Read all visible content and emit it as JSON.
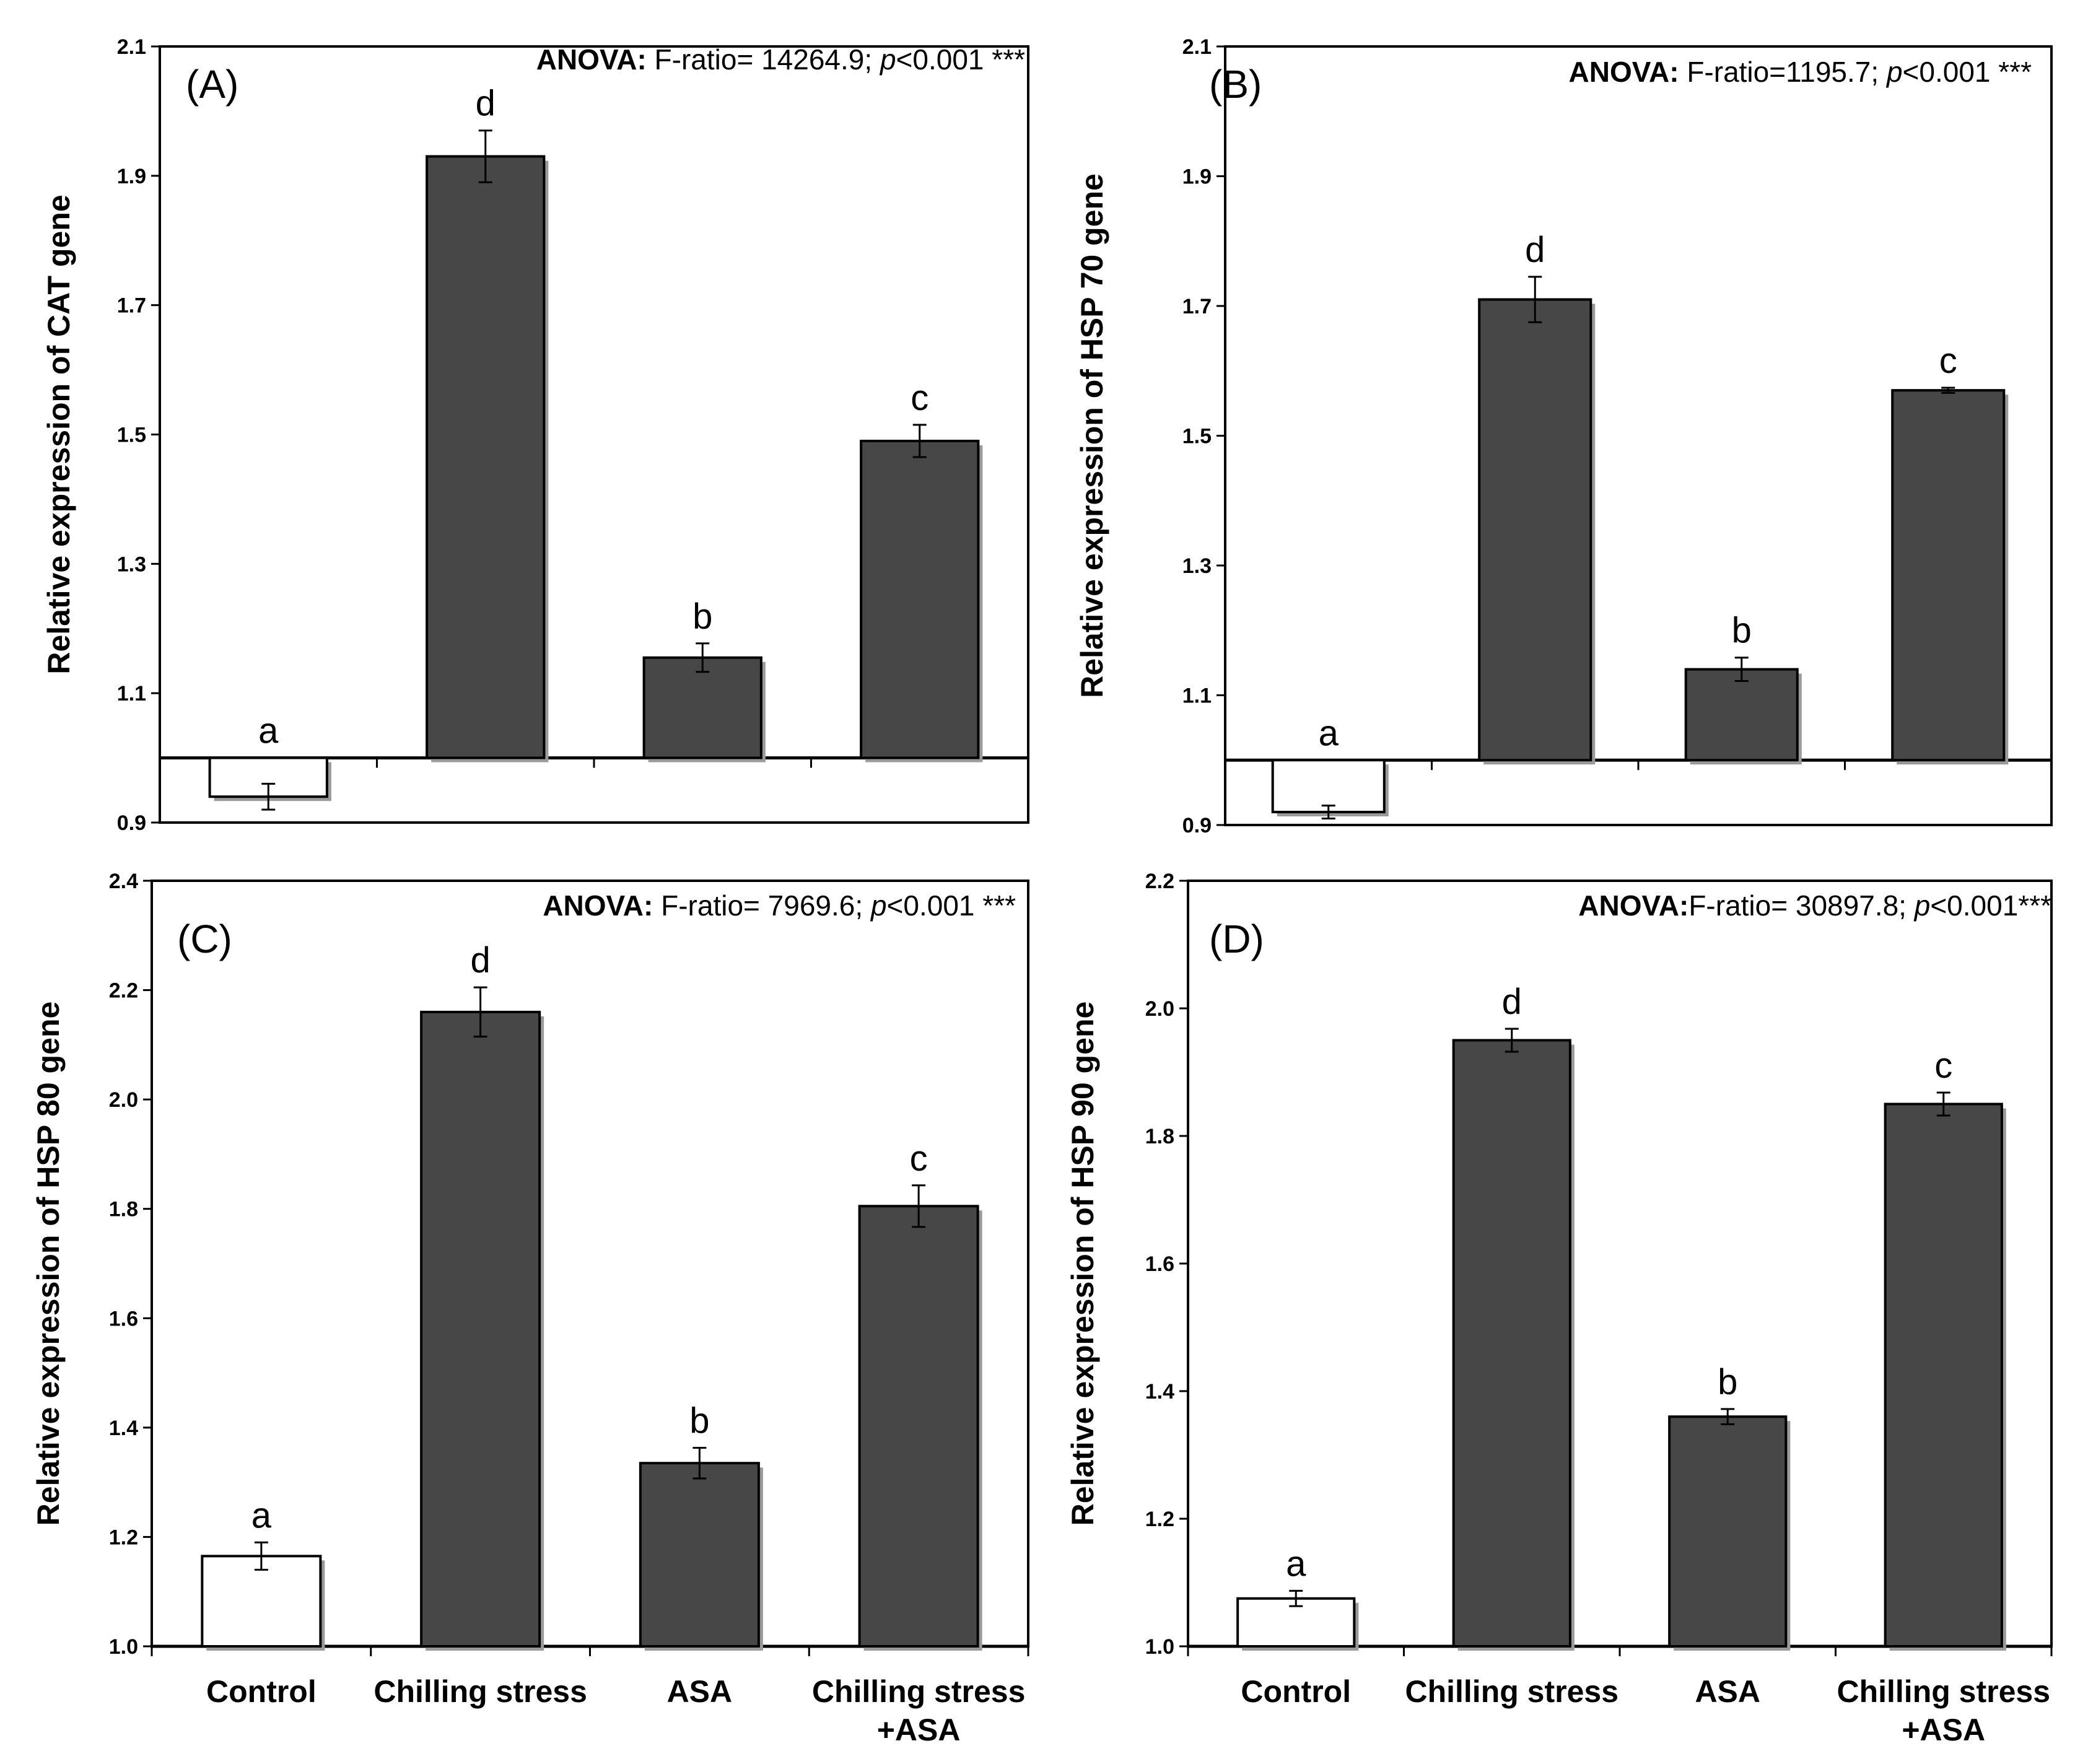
{
  "figure": {
    "categories": [
      [
        "Control"
      ],
      [
        "Chilling stress"
      ],
      [
        "ASA"
      ],
      [
        "Chilling stress",
        "+ASA"
      ]
    ]
  },
  "colors": {
    "control_fill": "#ffffff",
    "treatment_fill": "#474747",
    "bar_stroke": "#000000",
    "bar_shadow": "#9a9a9a",
    "axis": "#000000"
  },
  "chart_data": [
    {
      "type": "bar",
      "panel_label": "(A)",
      "anova": {
        "prefix": "ANOVA:",
        "text": " F-ratio= 14264.9; ",
        "p_italic": "p",
        "p_rest": "<0.001 ***"
      },
      "ylabel": "Relative expression of CAT gene",
      "ylim": [
        0.9,
        2.1
      ],
      "baseline": 1.0,
      "yticks": [
        0.9,
        1.1,
        1.3,
        1.5,
        1.7,
        1.9,
        2.1
      ],
      "ytick_labels": [
        "0.9",
        "1.1",
        "1.3",
        "1.5",
        "1.7",
        "1.9",
        "2.1"
      ],
      "categories": [
        "Control",
        "Chilling stress",
        "ASA",
        "Chilling stress +ASA"
      ],
      "values": [
        0.94,
        1.93,
        1.155,
        1.49
      ],
      "errors": [
        0.02,
        0.04,
        0.022,
        0.025
      ],
      "letters": [
        "a",
        "d",
        "b",
        "c"
      ]
    },
    {
      "type": "bar",
      "panel_label": "(B)",
      "anova": {
        "prefix": "ANOVA:",
        "text": " F-ratio=1195.7; ",
        "p_italic": "p",
        "p_rest": "<0.001 ***"
      },
      "ylabel": "Relative expression of HSP 70 gene",
      "ylim": [
        0.9,
        2.1
      ],
      "baseline": 1.0,
      "yticks": [
        0.9,
        1.1,
        1.3,
        1.5,
        1.7,
        1.9,
        2.1
      ],
      "ytick_labels": [
        "0.9",
        "1.1",
        "1.3",
        "1.5",
        "1.7",
        "1.9",
        "2.1"
      ],
      "categories": [
        "Control",
        "Chilling stress",
        "ASA",
        "Chilling stress +ASA"
      ],
      "values": [
        0.92,
        1.71,
        1.14,
        1.57
      ],
      "errors": [
        0.01,
        0.035,
        0.018,
        0.004
      ],
      "letters": [
        "a",
        "d",
        "b",
        "c"
      ]
    },
    {
      "type": "bar",
      "panel_label": "(C)",
      "anova": {
        "prefix": "ANOVA:",
        "text": " F-ratio= 7969.6; ",
        "p_italic": "p",
        "p_rest": "<0.001 ***"
      },
      "ylabel": "Relative expression of HSP 80 gene",
      "ylim": [
        1.0,
        2.4
      ],
      "baseline": 1.0,
      "yticks": [
        1.0,
        1.2,
        1.4,
        1.6,
        1.8,
        2.0,
        2.2,
        2.4
      ],
      "ytick_labels": [
        "1.0",
        "1.2",
        "1.4",
        "1.6",
        "1.8",
        "2.0",
        "2.2",
        "2.4"
      ],
      "categories": [
        "Control",
        "Chilling stress",
        "ASA",
        "Chilling stress +ASA"
      ],
      "values": [
        1.165,
        2.16,
        1.335,
        1.805
      ],
      "errors": [
        0.025,
        0.045,
        0.028,
        0.038
      ],
      "letters": [
        "a",
        "d",
        "b",
        "c"
      ]
    },
    {
      "type": "bar",
      "panel_label": "(D)",
      "anova": {
        "prefix": "ANOVA:",
        "text": "F-ratio= 30897.8; ",
        "p_italic": "p",
        "p_rest": "<0.001***"
      },
      "ylabel": "Relative expression of HSP 90 gene",
      "ylim": [
        1.0,
        2.2
      ],
      "baseline": 1.0,
      "yticks": [
        1.0,
        1.2,
        1.4,
        1.6,
        1.8,
        2.0,
        2.2
      ],
      "ytick_labels": [
        "1.0",
        "1.2",
        "1.4",
        "1.6",
        "1.8",
        "2.0",
        "2.2"
      ],
      "categories": [
        "Control",
        "Chilling stress",
        "ASA",
        "Chilling stress +ASA"
      ],
      "values": [
        1.075,
        1.95,
        1.36,
        1.85
      ],
      "errors": [
        0.012,
        0.018,
        0.012,
        0.018
      ],
      "letters": [
        "a",
        "d",
        "b",
        "c"
      ]
    }
  ]
}
